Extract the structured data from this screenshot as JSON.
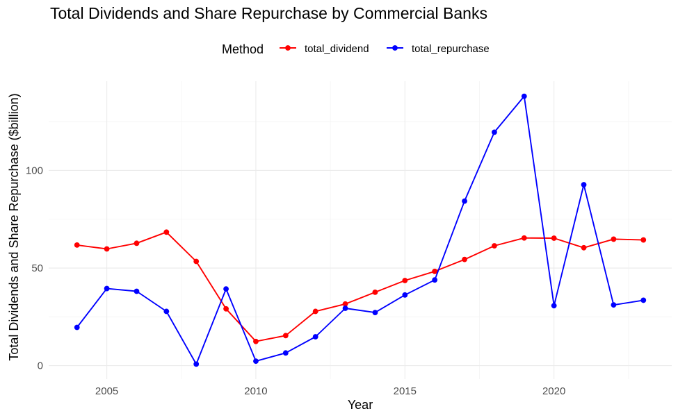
{
  "chart_data": {
    "type": "line",
    "title": "Total Dividends and Share Repurchase by Commercial Banks",
    "xlabel": "Year",
    "ylabel": "Total Dividends and Share Repurchase ($billion)",
    "legend": {
      "title": "Method",
      "placement": "top"
    },
    "x": [
      2004,
      2005,
      2006,
      2007,
      2008,
      2009,
      2010,
      2011,
      2012,
      2013,
      2014,
      2015,
      2016,
      2017,
      2018,
      2019,
      2020,
      2021,
      2022,
      2023
    ],
    "series": [
      {
        "name": "total_dividend",
        "color": "#ff0000",
        "values": [
          61.8,
          59.8,
          62.7,
          68.4,
          53.4,
          29.1,
          12.4,
          15.4,
          27.8,
          31.6,
          37.6,
          43.6,
          48.3,
          54.4,
          61.4,
          65.4,
          65.3,
          60.4,
          64.8,
          64.4
        ]
      },
      {
        "name": "total_repurchase",
        "color": "#0000ff",
        "values": [
          19.6,
          39.5,
          38.1,
          27.8,
          0.8,
          39.3,
          2.3,
          6.5,
          14.8,
          29.4,
          27.2,
          36.2,
          43.9,
          84.3,
          119.6,
          138.0,
          30.7,
          92.7,
          31.1,
          33.5
        ]
      }
    ],
    "xlim": [
      2003.05,
      2023.95
    ],
    "ylim": [
      -6.9,
      145.7
    ],
    "x_ticks": [
      2005,
      2010,
      2015,
      2020
    ],
    "x_tick_labels": [
      "2005",
      "2010",
      "2015",
      "2020"
    ],
    "y_ticks": [
      0,
      50,
      100
    ],
    "y_tick_labels": [
      "0",
      "50",
      "100"
    ],
    "grid": true
  }
}
